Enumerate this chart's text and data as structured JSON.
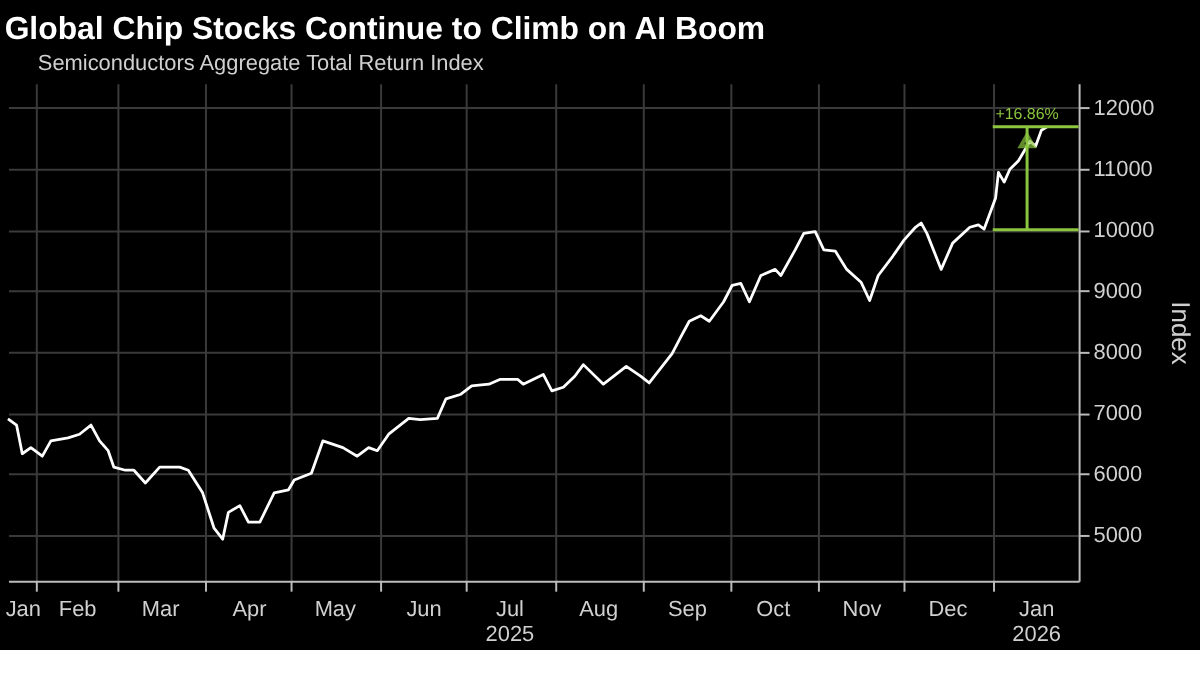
{
  "chart_data": {
    "type": "line",
    "title": "Global Chip Stocks Continue to Climb on AI Boom",
    "ylabel": "Index",
    "x": [
      "2025-01-22",
      "2025-01-25",
      "2025-01-27",
      "2025-01-30",
      "2025-02-03",
      "2025-02-06",
      "2025-02-12",
      "2025-02-16",
      "2025-02-20",
      "2025-02-23",
      "2025-02-26",
      "2025-02-28",
      "2025-03-04",
      "2025-03-07",
      "2025-03-11",
      "2025-03-16",
      "2025-03-23",
      "2025-03-26",
      "2025-03-31",
      "2025-04-04",
      "2025-04-07",
      "2025-04-09",
      "2025-04-13",
      "2025-04-16",
      "2025-04-20",
      "2025-04-25",
      "2025-04-30",
      "2025-05-02",
      "2025-05-08",
      "2025-05-12",
      "2025-05-19",
      "2025-05-24",
      "2025-05-28",
      "2025-05-31",
      "2025-06-04",
      "2025-06-11",
      "2025-06-15",
      "2025-06-21",
      "2025-06-24",
      "2025-06-29",
      "2025-07-03",
      "2025-07-09",
      "2025-07-13",
      "2025-07-19",
      "2025-07-21",
      "2025-07-28",
      "2025-07-31",
      "2025-08-04",
      "2025-08-08",
      "2025-08-11",
      "2025-08-18",
      "2025-08-26",
      "2025-08-31",
      "2025-09-03",
      "2025-09-11",
      "2025-09-14",
      "2025-09-17",
      "2025-09-21",
      "2025-09-24",
      "2025-09-29",
      "2025-10-02",
      "2025-10-05",
      "2025-10-08",
      "2025-10-12",
      "2025-10-17",
      "2025-10-19",
      "2025-10-24",
      "2025-10-27",
      "2025-10-31",
      "2025-11-03",
      "2025-11-07",
      "2025-11-11",
      "2025-11-16",
      "2025-11-19",
      "2025-11-22",
      "2025-11-27",
      "2025-12-01",
      "2025-12-05",
      "2025-12-07",
      "2025-12-09",
      "2025-12-14",
      "2025-12-18",
      "2025-12-24",
      "2025-12-27",
      "2025-12-29",
      "2026-01-02",
      "2026-01-03",
      "2026-01-05",
      "2026-01-07",
      "2026-01-10",
      "2026-01-14",
      "2026-01-16",
      "2026-01-18",
      "2026-01-20"
    ],
    "series": [
      {
        "name": "Semiconductors Aggregate Total Return Index",
        "color": "#ffffff",
        "values": [
          6900,
          6800,
          6330,
          6430,
          6290,
          6540,
          6590,
          6650,
          6800,
          6540,
          6380,
          6110,
          6060,
          6060,
          5850,
          6110,
          6110,
          6060,
          5690,
          5110,
          4930,
          5370,
          5480,
          5210,
          5210,
          5690,
          5740,
          5900,
          6010,
          6540,
          6430,
          6290,
          6430,
          6380,
          6650,
          6910,
          6890,
          6910,
          7230,
          7300,
          7440,
          7470,
          7550,
          7550,
          7470,
          7630,
          7360,
          7420,
          7600,
          7790,
          7470,
          7760,
          7600,
          7490,
          7970,
          8240,
          8500,
          8590,
          8500,
          8820,
          9090,
          9120,
          8820,
          9250,
          9350,
          9250,
          9670,
          9940,
          9970,
          9670,
          9650,
          9350,
          9140,
          8840,
          9250,
          9560,
          9830,
          10040,
          10110,
          9940,
          9350,
          9780,
          10040,
          10080,
          10010,
          10520,
          10940,
          10780,
          10990,
          11130,
          11450,
          11370,
          11630,
          11686
        ]
      }
    ],
    "xlim": [
      "2025-01-22",
      "2026-01-31"
    ],
    "xticks": [
      {
        "value": "2025-01-27",
        "label": "Jan"
      },
      {
        "value": "2025-02-01",
        "label": null
      },
      {
        "value": "2025-02-15",
        "label": "Feb"
      },
      {
        "value": "2025-03-01",
        "label": null
      },
      {
        "value": "2025-03-16",
        "label": "Mar"
      },
      {
        "value": "2025-04-01",
        "label": null
      },
      {
        "value": "2025-04-16",
        "label": "Apr"
      },
      {
        "value": "2025-05-01",
        "label": null
      },
      {
        "value": "2025-05-16",
        "label": "May"
      },
      {
        "value": "2025-06-01",
        "label": null
      },
      {
        "value": "2025-06-16",
        "label": "Jun"
      },
      {
        "value": "2025-07-01",
        "label": null
      },
      {
        "value": "2025-07-16",
        "label": "Jul\n2025"
      },
      {
        "value": "2025-08-01",
        "label": null
      },
      {
        "value": "2025-08-16",
        "label": "Aug"
      },
      {
        "value": "2025-09-01",
        "label": null
      },
      {
        "value": "2025-09-16",
        "label": "Sep"
      },
      {
        "value": "2025-10-01",
        "label": null
      },
      {
        "value": "2025-10-16",
        "label": "Oct"
      },
      {
        "value": "2025-11-01",
        "label": null
      },
      {
        "value": "2025-11-16",
        "label": "Nov"
      },
      {
        "value": "2025-12-01",
        "label": null
      },
      {
        "value": "2025-12-16",
        "label": "Dec"
      },
      {
        "value": "2026-01-01",
        "label": null
      },
      {
        "value": "2026-01-16",
        "label": "Jan\n2026"
      }
    ],
    "ylim": [
      4250,
      12400
    ],
    "yticks": [
      5000,
      6000,
      7000,
      8000,
      9000,
      10000,
      11000,
      12000
    ],
    "ref_lines": [
      {
        "axis": "y",
        "value": 10000,
        "color": "#8cc63f"
      },
      {
        "axis": "y",
        "value": 11686,
        "color": "#8cc63f"
      }
    ],
    "annotations": [
      {
        "text": "+16.86%",
        "x": "2026-01-13",
        "y": 11686
      }
    ],
    "grid": true,
    "legend": "top left"
  }
}
